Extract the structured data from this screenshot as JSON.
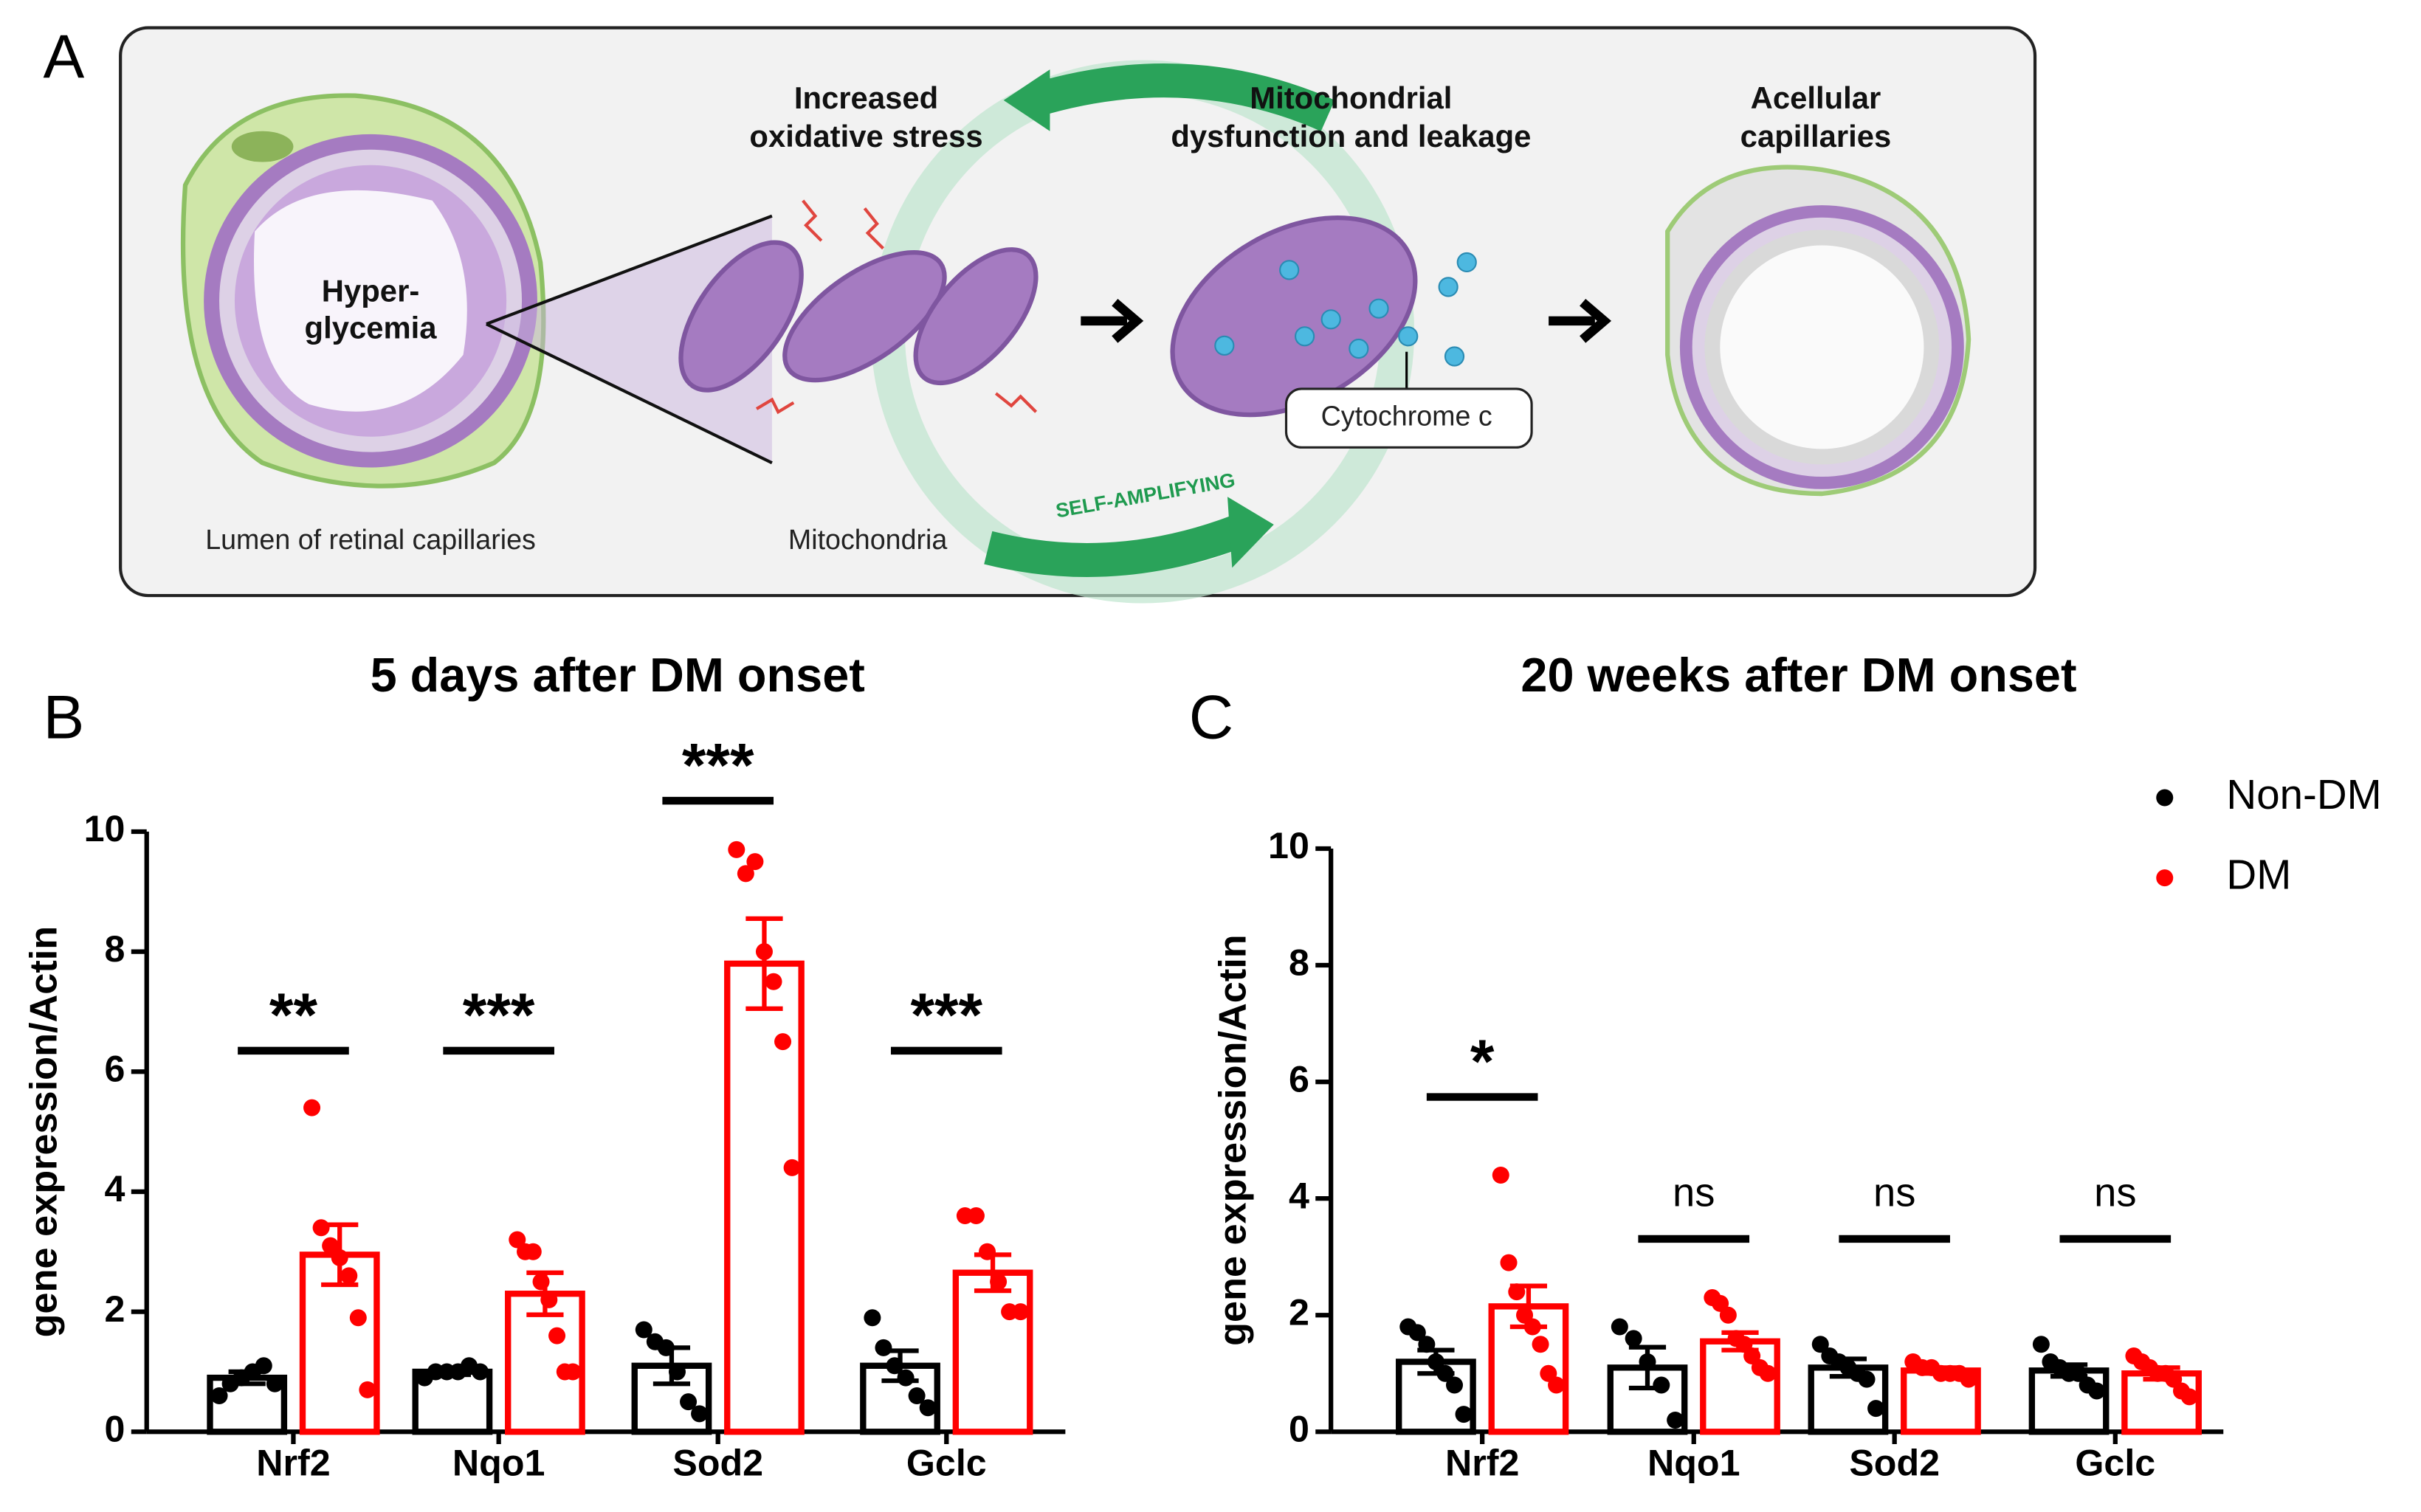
{
  "panel_labels": [
    "A",
    "B",
    "C"
  ],
  "diagram": {
    "oxidative_stress": [
      "Increased",
      "oxidative stress"
    ],
    "mito_dysfunction": [
      "Mitochondrial",
      "dysfunction and leakage"
    ],
    "acellular": [
      "Acellular",
      "capillaries"
    ],
    "hyperglycemia": [
      "Hyper-",
      "glycemia"
    ],
    "cytochrome": "Cytochrome c",
    "lumen": "Lumen of retinal capillaries",
    "mitochondria": "Mitochondria",
    "cycle": "SELF-AMPLIFYING"
  },
  "chart_data": [
    {
      "type": "bar",
      "title": "5 days after  DM onset",
      "ylabel": "gene expression/Actin",
      "categories": [
        "Nrf2",
        "Nqo1",
        "Sod2",
        "Gclc"
      ],
      "ylim": [
        0,
        10
      ],
      "yticks": [
        0,
        2,
        4,
        6,
        8,
        10
      ],
      "significance": [
        "**",
        "***",
        "***",
        "***"
      ],
      "series": [
        {
          "name": "Non-DM",
          "color": "#000000",
          "values": [
            0.9,
            1.0,
            1.1,
            1.1
          ],
          "errors": [
            0.1,
            0.05,
            0.3,
            0.25
          ],
          "points": [
            [
              0.6,
              0.8,
              0.9,
              1.0,
              1.1,
              0.8
            ],
            [
              0.9,
              1.0,
              1.0,
              1.0,
              1.1,
              1.0
            ],
            [
              1.7,
              1.5,
              1.4,
              1.0,
              0.5,
              0.3
            ],
            [
              1.9,
              1.4,
              1.1,
              0.9,
              0.6,
              0.4
            ]
          ]
        },
        {
          "name": "DM",
          "color": "#ff0000",
          "values": [
            2.95,
            2.3,
            7.8,
            2.65
          ],
          "errors": [
            0.5,
            0.35,
            0.75,
            0.3
          ],
          "points": [
            [
              5.4,
              3.4,
              3.1,
              2.9,
              2.6,
              1.9,
              0.7
            ],
            [
              3.2,
              3.0,
              3.0,
              2.5,
              2.2,
              1.6,
              1.0,
              1.0
            ],
            [
              9.7,
              9.3,
              9.5,
              8.0,
              7.5,
              6.5,
              4.4
            ],
            [
              3.6,
              3.6,
              3.0,
              2.5,
              2.0,
              2.0
            ]
          ]
        }
      ]
    },
    {
      "type": "bar",
      "title": "20 weeks after DM onset",
      "ylabel": "gene expression/Actin",
      "categories": [
        "Nrf2",
        "Nqo1",
        "Sod2",
        "Gclc"
      ],
      "ylim": [
        0,
        10
      ],
      "yticks": [
        0,
        2,
        4,
        6,
        8,
        10
      ],
      "significance": [
        "*",
        "ns",
        "ns",
        "ns"
      ],
      "legend": true,
      "series": [
        {
          "name": "Non-DM",
          "color": "#000000",
          "values": [
            1.2,
            1.1,
            1.1,
            1.05
          ],
          "errors": [
            0.2,
            0.35,
            0.15,
            0.1
          ],
          "points": [
            [
              1.8,
              1.7,
              1.5,
              1.2,
              1.0,
              0.8,
              0.3
            ],
            [
              1.8,
              1.6,
              1.2,
              0.8,
              0.2
            ],
            [
              1.5,
              1.3,
              1.2,
              1.1,
              1.0,
              0.9,
              0.4
            ],
            [
              1.5,
              1.2,
              1.1,
              1.0,
              1.0,
              0.8,
              0.7
            ]
          ]
        },
        {
          "name": "DM",
          "color": "#ff0000",
          "values": [
            2.15,
            1.55,
            1.05,
            1.0
          ],
          "errors": [
            0.35,
            0.15,
            0.05,
            0.1
          ],
          "points": [
            [
              4.4,
              2.9,
              2.4,
              2.0,
              1.8,
              1.5,
              1.0,
              0.8
            ],
            [
              2.3,
              2.2,
              2.0,
              1.6,
              1.5,
              1.3,
              1.1,
              1.0
            ],
            [
              1.2,
              1.1,
              1.1,
              1.0,
              1.0,
              1.0,
              0.9
            ],
            [
              1.3,
              1.2,
              1.1,
              1.0,
              1.0,
              0.9,
              0.7,
              0.6
            ]
          ]
        }
      ]
    }
  ]
}
